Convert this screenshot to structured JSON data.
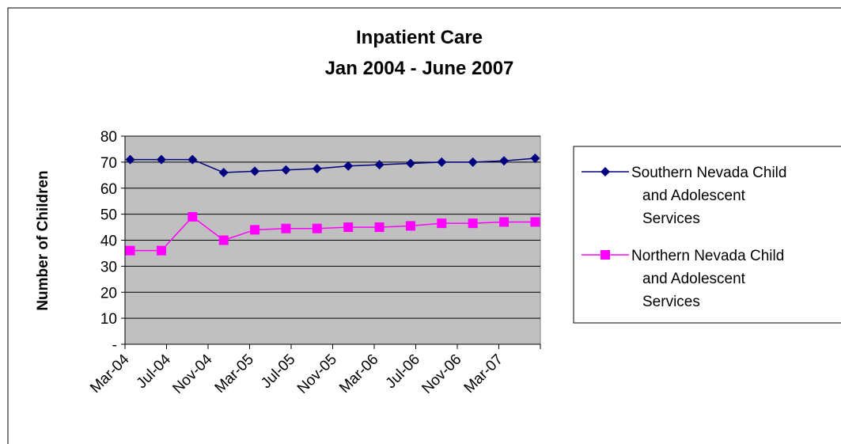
{
  "chart_data": {
    "type": "line",
    "title": [
      "Inpatient Care",
      "Jan 2004 - June 2007"
    ],
    "y_label": "Number of Children",
    "x": [
      "2004-03",
      "2004-06",
      "2004-09",
      "2004-12",
      "2005-03",
      "2005-06",
      "2005-09",
      "2005-12",
      "2006-03",
      "2006-06",
      "2006-09",
      "2006-12",
      "2007-03",
      "2007-06"
    ],
    "series": [
      {
        "name": "Southern Nevada Child and Adolescent Services",
        "color": "#000080",
        "marker": "diamond",
        "values": [
          71,
          71,
          71,
          66,
          66.5,
          67,
          67.5,
          68.5,
          69,
          69.5,
          70,
          70,
          70.5,
          71.5
        ]
      },
      {
        "name": "Northern Nevada Child and Adolescent Services",
        "color": "#ff00ff",
        "marker": "square",
        "values": [
          36,
          36,
          49,
          40,
          44,
          44.5,
          44.5,
          45,
          45,
          45.5,
          46.5,
          46.5,
          47,
          47
        ]
      }
    ],
    "xlim": [
      "2004-03",
      "2007-07"
    ],
    "xticks": [
      {
        "value": "2004-03",
        "label": "Mar-04"
      },
      {
        "value": "2004-07",
        "label": "Jul-04"
      },
      {
        "value": "2004-11",
        "label": "Nov-04"
      },
      {
        "value": "2005-03",
        "label": "Mar-05"
      },
      {
        "value": "2005-07",
        "label": "Jul-05"
      },
      {
        "value": "2005-11",
        "label": "Nov-05"
      },
      {
        "value": "2006-03",
        "label": "Mar-06"
      },
      {
        "value": "2006-07",
        "label": "Jul-06"
      },
      {
        "value": "2006-11",
        "label": "Nov-06"
      },
      {
        "value": "2007-03",
        "label": "Mar-07"
      }
    ],
    "ylim": [
      0,
      80
    ],
    "yticks": [
      {
        "value": 0,
        "label": "-"
      },
      10,
      20,
      30,
      40,
      50,
      60,
      70,
      80
    ],
    "grid": true,
    "plot_background": "#c0c0c0",
    "legend": "right"
  }
}
